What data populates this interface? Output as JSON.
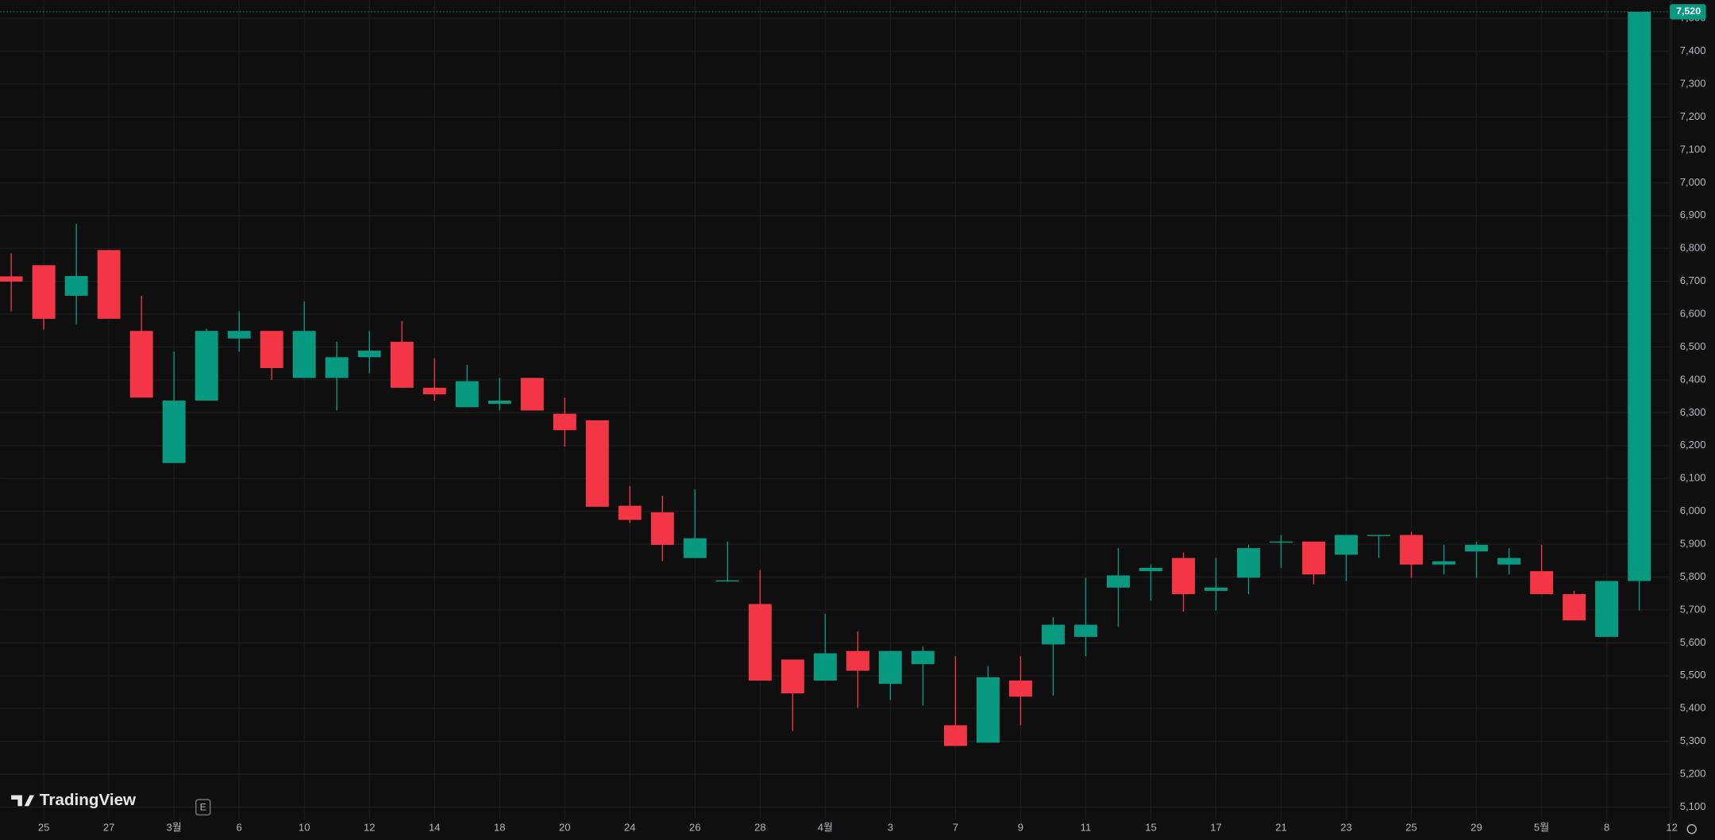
{
  "chart_data": {
    "type": "candlestick",
    "x": [
      null,
      "25",
      null,
      "27",
      null,
      "3월",
      null,
      "6",
      null,
      "10",
      null,
      "12",
      null,
      "14",
      null,
      "18",
      null,
      "20",
      null,
      "24",
      null,
      "26",
      null,
      "28",
      null,
      "4월",
      null,
      "3",
      null,
      "7",
      null,
      "9",
      null,
      "11",
      null,
      "15",
      null,
      "17",
      null,
      "21",
      null,
      "23",
      null,
      "25",
      null,
      "29",
      null,
      "5월",
      null,
      "8",
      null,
      "12"
    ],
    "open": [
      6715,
      6749,
      6656,
      6795,
      6549,
      6147,
      6337,
      6526,
      6549,
      6406,
      6406,
      6469,
      6516,
      6376,
      6317,
      6327,
      6406,
      6297,
      6277,
      6017,
      5997,
      5858,
      5790,
      5718,
      5549,
      5485,
      5575,
      5475,
      5535,
      5349,
      5296,
      5485,
      5595,
      5618,
      5768,
      5818,
      5858,
      5758,
      5798,
      5908,
      5908,
      5868,
      5928,
      5928,
      5838,
      5878,
      5838,
      5818,
      5748,
      5618,
      5788,
      null
    ],
    "high": [
      6785,
      6749,
      6875,
      6795,
      6656,
      6486,
      6556,
      6609,
      6549,
      6639,
      6516,
      6549,
      6579,
      6466,
      6446,
      6406,
      6406,
      6346,
      6277,
      6077,
      6047,
      6067,
      5908,
      5821,
      5549,
      5688,
      5635,
      5575,
      5588,
      5559,
      5529,
      5559,
      5678,
      5798,
      5888,
      5838,
      5875,
      5858,
      5898,
      5928,
      5908,
      5928,
      5928,
      5938,
      5898,
      5908,
      5888,
      5898,
      5758,
      5788,
      7520,
      null
    ],
    "low": [
      6609,
      6553,
      6570,
      6586,
      6346,
      6147,
      6337,
      6486,
      6400,
      6406,
      6307,
      6420,
      6376,
      6337,
      6317,
      6307,
      6307,
      6197,
      6014,
      5964,
      5848,
      5858,
      5788,
      5485,
      5332,
      5485,
      5402,
      5426,
      5409,
      5286,
      5296,
      5349,
      5439,
      5559,
      5648,
      5728,
      5695,
      5698,
      5748,
      5828,
      5778,
      5788,
      5858,
      5798,
      5808,
      5798,
      5808,
      5748,
      5668,
      5618,
      5698,
      null
    ],
    "close": [
      6699,
      6586,
      6716,
      6586,
      6346,
      6337,
      6549,
      6549,
      6436,
      6549,
      6469,
      6489,
      6376,
      6356,
      6396,
      6337,
      6307,
      6247,
      6014,
      5974,
      5898,
      5918,
      5790,
      5485,
      5446,
      5568,
      5515,
      5575,
      5575,
      5286,
      5495,
      5436,
      5655,
      5655,
      5805,
      5828,
      5748,
      5768,
      5888,
      5908,
      5808,
      5928,
      5928,
      5838,
      5848,
      5898,
      5858,
      5748,
      5668,
      5788,
      7520,
      null
    ],
    "up_color": "#089981",
    "down_color": "#f23645",
    "ylim": [
      5063,
      7556
    ],
    "yticks": [
      {
        "value": 5100,
        "label": "5,100"
      },
      {
        "value": 5200,
        "label": "5,200"
      },
      {
        "value": 5300,
        "label": "5,300"
      },
      {
        "value": 5400,
        "label": "5,400"
      },
      {
        "value": 5500,
        "label": "5,500"
      },
      {
        "value": 5600,
        "label": "5,600"
      },
      {
        "value": 5700,
        "label": "5,700"
      },
      {
        "value": 5800,
        "label": "5,800"
      },
      {
        "value": 5900,
        "label": "5,900"
      },
      {
        "value": 6000,
        "label": "6,000"
      },
      {
        "value": 6100,
        "label": "6,100"
      },
      {
        "value": 6200,
        "label": "6,200"
      },
      {
        "value": 6300,
        "label": "6,300"
      },
      {
        "value": 6400,
        "label": "6,400"
      },
      {
        "value": 6500,
        "label": "6,500"
      },
      {
        "value": 6600,
        "label": "6,600"
      },
      {
        "value": 6700,
        "label": "6,700"
      },
      {
        "value": 6800,
        "label": "6,800"
      },
      {
        "value": 6900,
        "label": "6,900"
      },
      {
        "value": 7000,
        "label": "7,000"
      },
      {
        "value": 7100,
        "label": "7,100"
      },
      {
        "value": 7200,
        "label": "7,200"
      },
      {
        "value": 7300,
        "label": "7,300"
      },
      {
        "value": 7400,
        "label": "7,400"
      },
      {
        "value": 7500,
        "label": "7,500"
      }
    ],
    "grid": true,
    "last_price": {
      "value": 7520,
      "label": "7,520"
    },
    "watermark": "TradingView",
    "event_badge": "E"
  }
}
